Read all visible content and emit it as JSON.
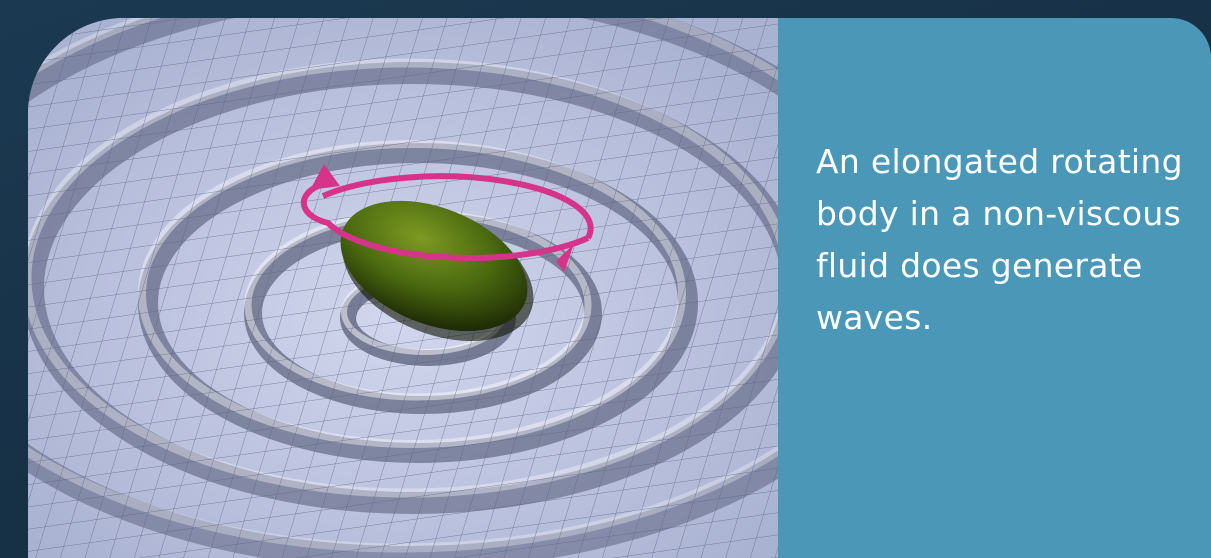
{
  "caption": {
    "text": "An elongated rotating body in a non-viscous fluid does generate waves."
  },
  "colors": {
    "background": "#1b3a52",
    "panel": "#4a97b8",
    "surface": "#b7bedb",
    "body": "#4f6f12",
    "arrow": "#d6338a",
    "text": "#ffffff"
  },
  "icons": {
    "rotation_arrow": "rotation-arrow-icon"
  }
}
